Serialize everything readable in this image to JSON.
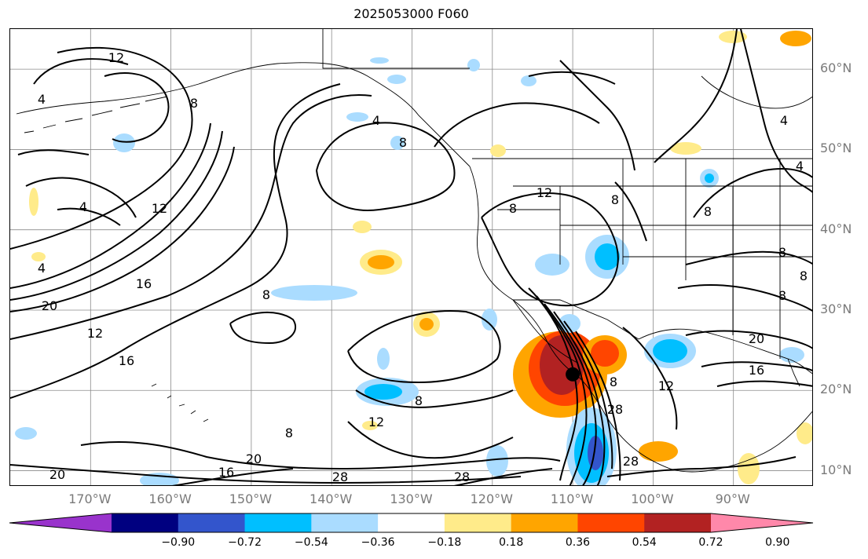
{
  "title": "2025053000 F060",
  "map": {
    "lat_labels": [
      {
        "text": "60°N",
        "lat": 60
      },
      {
        "text": "50°N",
        "lat": 50
      },
      {
        "text": "40°N",
        "lat": 40
      },
      {
        "text": "30°N",
        "lat": 30
      },
      {
        "text": "20°N",
        "lat": 20
      },
      {
        "text": "10°N",
        "lat": 10
      }
    ],
    "lon_labels": [
      {
        "text": "170°W",
        "lon": -170
      },
      {
        "text": "160°W",
        "lon": -160
      },
      {
        "text": "150°W",
        "lon": -150
      },
      {
        "text": "140°W",
        "lon": -140
      },
      {
        "text": "130°W",
        "lon": -130
      },
      {
        "text": "120°W",
        "lon": -120
      },
      {
        "text": "110°W",
        "lon": -110
      },
      {
        "text": "100°W",
        "lon": -100
      },
      {
        "text": "90°W",
        "lon": -90
      }
    ],
    "lon_range": [
      -180,
      -80
    ],
    "lat_range": [
      8,
      65
    ],
    "grid": true,
    "contour_labels": [
      "12",
      "4",
      "4",
      "4",
      "8",
      "4",
      "12",
      "16",
      "20",
      "12",
      "8",
      "16",
      "8",
      "12",
      "8",
      "8",
      "12",
      "8",
      "4",
      "8",
      "8",
      "20",
      "16",
      "28",
      "28",
      "28",
      "20",
      "16",
      "20",
      "8",
      "12",
      "8",
      "28",
      "8",
      "4",
      "8"
    ],
    "storm_center": {
      "lat": 22,
      "lon": -110
    }
  },
  "colorbar": {
    "colors": [
      "#9933cc",
      "#000080",
      "#3355cc",
      "#00bfff",
      "#aadcff",
      "#ffffff",
      "#ffeb8a",
      "#ffa500",
      "#ff4500",
      "#b22222",
      "#ff88aa"
    ],
    "ticks": [
      "−0.90",
      "−0.72",
      "−0.54",
      "−0.36",
      "−0.18",
      "0.18",
      "0.36",
      "0.54",
      "0.72",
      "0.90"
    ]
  }
}
